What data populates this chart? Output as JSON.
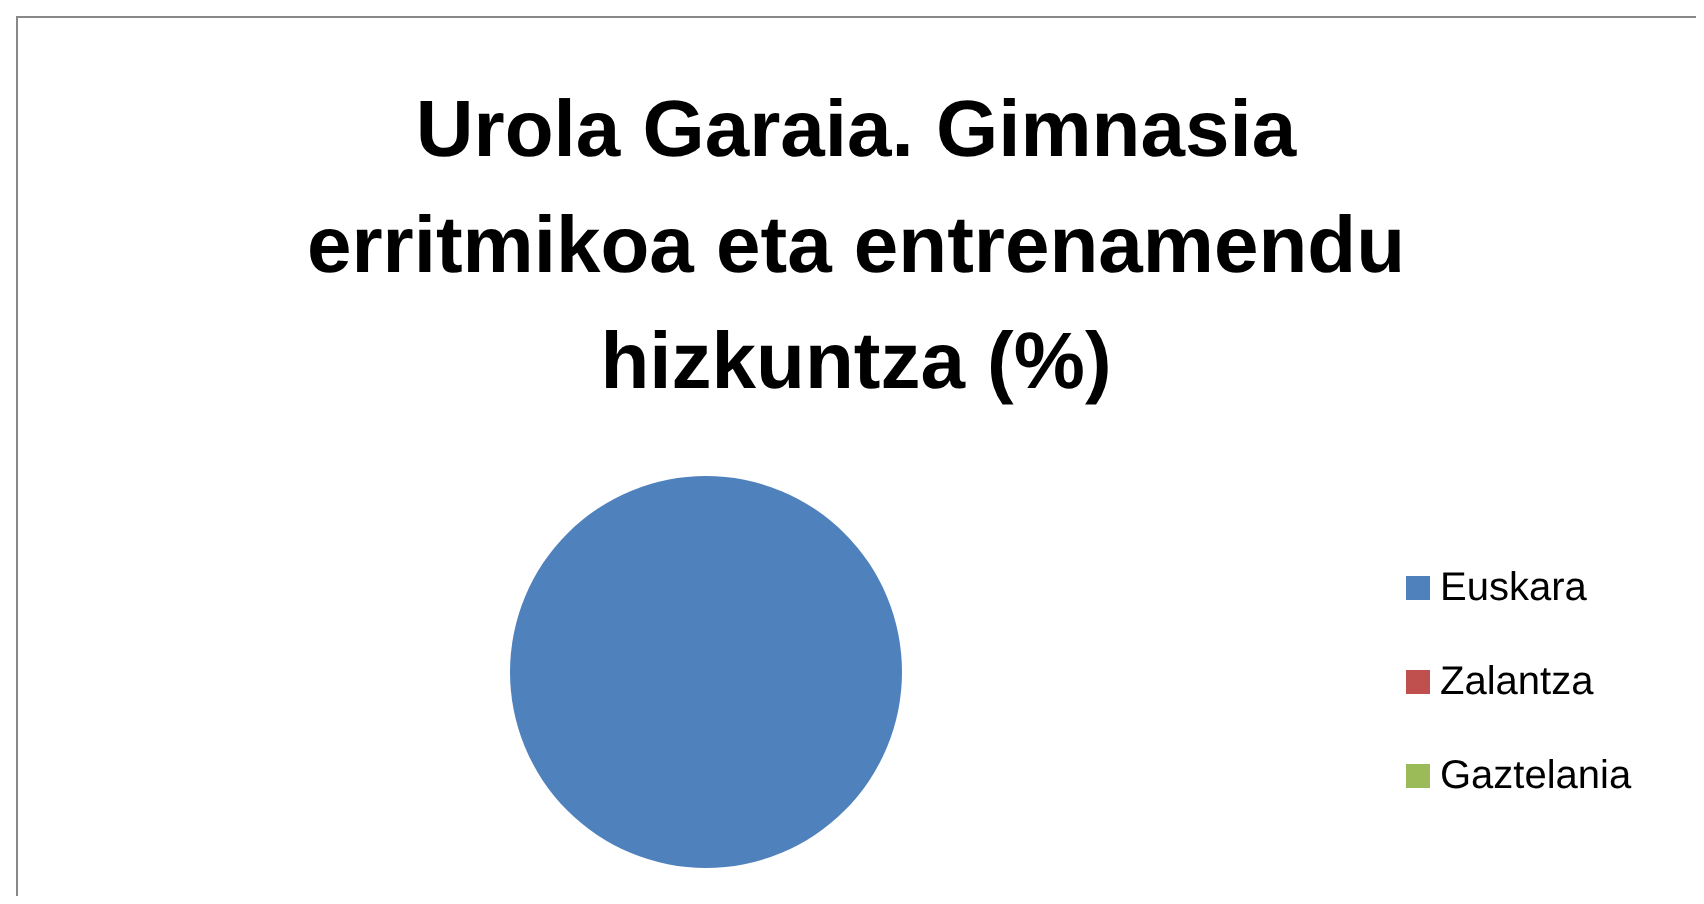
{
  "chart_data": {
    "type": "pie",
    "title": "Urola Garaia. Gimnasia erritmikoa eta entrenamendu hizkuntza (%)",
    "categories": [
      "Euskara",
      "Zalantza",
      "Gaztelania"
    ],
    "values": [
      100,
      0,
      0
    ],
    "colors": [
      "#4f81bd",
      "#c0504d",
      "#9bbb59"
    ],
    "legend": "right"
  }
}
